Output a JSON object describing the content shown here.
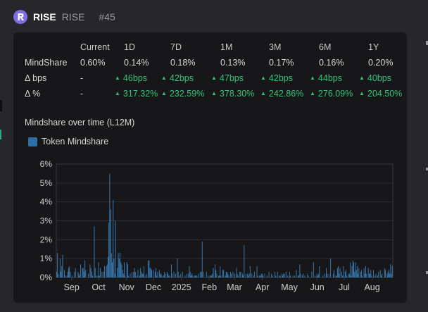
{
  "header": {
    "ticker": "RISE",
    "name": "RISE",
    "rank": "#45"
  },
  "stats": {
    "columns": [
      "Current",
      "1D",
      "7D",
      "1M",
      "3M",
      "6M",
      "1Y"
    ],
    "rows": [
      {
        "label": "MindShare",
        "values": [
          "0.60%",
          "0.14%",
          "0.18%",
          "0.13%",
          "0.17%",
          "0.16%",
          "0.20%"
        ],
        "positive": false
      },
      {
        "label": "Δ bps",
        "values": [
          "-",
          "46bps",
          "42bps",
          "47bps",
          "42bps",
          "44bps",
          "40bps"
        ],
        "positive": true
      },
      {
        "label": "Δ %",
        "values": [
          "-",
          "317.32%",
          "232.59%",
          "378.30%",
          "242.86%",
          "276.09%",
          "204.50%"
        ],
        "positive": true
      }
    ]
  },
  "colors": {
    "positive": "#36c27a",
    "bar": "#3a7fb8",
    "panel": "#17171a",
    "background": "#27272b"
  },
  "chart_data": {
    "type": "bar",
    "title": "Mindshare over time (L12M)",
    "legend": [
      "Token Mindshare"
    ],
    "ylim": [
      0,
      6
    ],
    "yticks": [
      "0%",
      "1%",
      "2%",
      "3%",
      "4%",
      "5%",
      "6%"
    ],
    "xticks": [
      "Sep",
      "Oct",
      "Nov",
      "Dec",
      "2025",
      "Feb",
      "Mar",
      "Apr",
      "May",
      "Jun",
      "Jul",
      "Aug"
    ],
    "x_start": "2024-08-15",
    "x_end": "2025-08-24",
    "series": [
      {
        "name": "Token Mindshare",
        "values": [
          0.3,
          1.3,
          0.2,
          0.0,
          1.0,
          0.3,
          0.6,
          1.2,
          0.0,
          0.4,
          0.1,
          0.0,
          0.1,
          0.3,
          0.5,
          0.6,
          0.3,
          0.0,
          0.1,
          0.0,
          0.0,
          0.3,
          0.5,
          0.0,
          0.0,
          0.3,
          0.2,
          0.1,
          0.7,
          0.0,
          0.5,
          0.5,
          0.3,
          0.9,
          0.4,
          0.0,
          0.0,
          0.2,
          0.0,
          0.7,
          0.5,
          0.3,
          0.1,
          0.0,
          2.7,
          0.5,
          0.1,
          0.0,
          0.1,
          0.8,
          0.1,
          0.5,
          0.0,
          0.3,
          0.0,
          0.3,
          0.6,
          0.0,
          0.6,
          0.7,
          1.1,
          2.9,
          5.5,
          3.6,
          1.3,
          0.8,
          4.1,
          1.0,
          0.2,
          3.0,
          0.0,
          0.5,
          1.3,
          1.0,
          1.3,
          0.8,
          0.7,
          0.4,
          0.2,
          0.8,
          0.1,
          0.0,
          0.8,
          0.7,
          0.1,
          0.0,
          0.2,
          0.0,
          0.3,
          0.0,
          0.3,
          0.5,
          0.3,
          0.0,
          0.1,
          0.4,
          0.0,
          0.1,
          0.5,
          0.3,
          0.2,
          0.2,
          0.6,
          0.0,
          0.1,
          0.2,
          0.0,
          0.9,
          0.9,
          0.5,
          0.5,
          0.4,
          0.0,
          0.4,
          0.0,
          0.3,
          0.5,
          0.1,
          0.3,
          0.0,
          0.4,
          0.2,
          0.2,
          0.1,
          0.0,
          0.1,
          0.3,
          0.2,
          0.0,
          0.3,
          0.2,
          0.1,
          0.1,
          0.0,
          0.7,
          0.2,
          0.0,
          0.3,
          0.0,
          0.2,
          0.0,
          1.0,
          0.3,
          0.1,
          0.0,
          0.2,
          0.0,
          0.3,
          0.0,
          0.0,
          0.1,
          0.0,
          0.2,
          0.0,
          0.2,
          0.6,
          0.3,
          0.1,
          0.2,
          0.1,
          0.0,
          0.1,
          0.1,
          0.1,
          0.1,
          0.0,
          0.2,
          0.0,
          0.3,
          0.3,
          1.9,
          0.3,
          0.0,
          0.0,
          0.0,
          0.3,
          0.0,
          0.1,
          0.0,
          0.1,
          0.1,
          0.1,
          0.2,
          0.5,
          0.0,
          0.7,
          0.4,
          0.2,
          0.0,
          0.1,
          0.1,
          0.6,
          0.1,
          0.0,
          0.4,
          0.4,
          0.0,
          0.1,
          0.3,
          0.3,
          0.2,
          0.1,
          0.0,
          0.3,
          0.2,
          0.0,
          0.3,
          0.0,
          0.2,
          0.0,
          0.5,
          0.2,
          0.1,
          0.0,
          0.3,
          0.3,
          0.0,
          0.2,
          0.1,
          1.7,
          0.0,
          0.2,
          0.0,
          0.2,
          0.1,
          0.2,
          0.6,
          0.0,
          0.2,
          0.0,
          0.1,
          0.3,
          0.0,
          0.0,
          0.6,
          0.1,
          0.0,
          0.1,
          0.1,
          0.2,
          0.2,
          0.1,
          0.0,
          0.2,
          0.0,
          0.0,
          0.1,
          0.0,
          0.3,
          0.0,
          0.0,
          0.2,
          0.1,
          0.0,
          0.0,
          0.3,
          0.1,
          0.0,
          0.3,
          0.0,
          0.1,
          0.1,
          0.0,
          0.2,
          0.1,
          0.2,
          0.2,
          0.0,
          0.3,
          0.0,
          0.1,
          0.0,
          0.3,
          0.1,
          0.0,
          0.0,
          0.1,
          0.0,
          0.1,
          0.0,
          0.4,
          0.0,
          0.1,
          0.1,
          0.7,
          0.2,
          0.0,
          0.1,
          0.2,
          0.0,
          0.1,
          0.0,
          0.0,
          0.2,
          0.1,
          0.0,
          0.0,
          0.0,
          0.3,
          0.0,
          0.8,
          0.0,
          0.1,
          0.0,
          0.2,
          0.1,
          0.2,
          0.6,
          0.0,
          0.0,
          0.0,
          0.1,
          0.0,
          0.2,
          0.0,
          0.5,
          0.2,
          0.0,
          0.2,
          0.0,
          1.0,
          0.0,
          0.0,
          0.2,
          0.4,
          0.0,
          0.1,
          0.1,
          0.5,
          0.6,
          0.2,
          0.5,
          0.0,
          0.3,
          0.1,
          0.6,
          0.0,
          0.3,
          0.4,
          0.1,
          0.0,
          0.2,
          0.2,
          0.8,
          0.1,
          0.6,
          0.9,
          0.8,
          0.3,
          0.8,
          0.4,
          0.6,
          0.2,
          0.5,
          0.0,
          0.3,
          0.4,
          0.1,
          0.0,
          0.5,
          0.2,
          0.6,
          0.2,
          0.0,
          0.5,
          0.2,
          0.2,
          0.4,
          0.1,
          0.0,
          0.4,
          0.0,
          0.1,
          0.2,
          0.0,
          0.1,
          0.3,
          0.0,
          0.4,
          0.1,
          0.2,
          0.0,
          0.0,
          0.5,
          0.4,
          0.0,
          0.2,
          0.3,
          0.4,
          0.2,
          0.7,
          0.2,
          0.6
        ]
      }
    ]
  }
}
